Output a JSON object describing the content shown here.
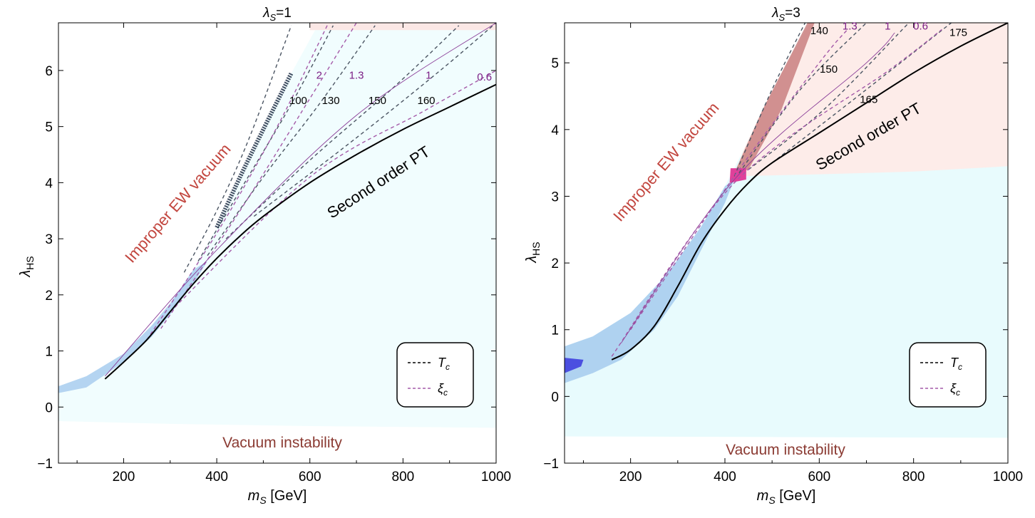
{
  "chart_data": [
    {
      "type": "line",
      "title": "λS=1",
      "title_main": "λ",
      "title_sub": "S",
      "title_rest": "=1",
      "xlabel_main": "m",
      "xlabel_sub": "S",
      "xlabel_rest": " [GeV]",
      "ylabel_main": "λ",
      "ylabel_sub": "HS",
      "xlim": [
        60,
        1000
      ],
      "ylim": [
        -1,
        6.85
      ],
      "xticks": [
        "200",
        "400",
        "600",
        "800",
        "1000"
      ],
      "xtick_values": [
        200,
        400,
        600,
        800,
        1000
      ],
      "yticks": [
        "−1",
        "0",
        "1",
        "2",
        "3",
        "4",
        "5",
        "6"
      ],
      "ytick_values": [
        -1,
        0,
        1,
        2,
        3,
        4,
        5,
        6
      ],
      "region_labels": {
        "improper": "Improper EW vacuum",
        "second_order": "Second order PT",
        "instability": "Vacuum instability"
      },
      "legend": {
        "tc": "T",
        "tc_sub": "c",
        "xi": "ξ",
        "xi_sub": "c",
        "placement": "bottom-right"
      },
      "second_order_boundary": [
        [
          160,
          0.5
        ],
        [
          200,
          0.8
        ],
        [
          250,
          1.2
        ],
        [
          300,
          1.7
        ],
        [
          350,
          2.2
        ],
        [
          400,
          2.65
        ],
        [
          450,
          3.05
        ],
        [
          500,
          3.4
        ],
        [
          600,
          4.0
        ],
        [
          700,
          4.5
        ],
        [
          800,
          4.95
        ],
        [
          900,
          5.35
        ],
        [
          1000,
          5.75
        ]
      ],
      "improper_boundary": [
        [
          60,
          0.37
        ],
        [
          120,
          0.55
        ],
        [
          200,
          0.95
        ],
        [
          260,
          1.45
        ],
        [
          300,
          1.85
        ],
        [
          350,
          2.45
        ],
        [
          400,
          3.2
        ],
        [
          450,
          4.1
        ],
        [
          500,
          4.95
        ],
        [
          560,
          5.95
        ],
        [
          620,
          6.85
        ]
      ],
      "blue_band_lower": [
        [
          60,
          0.25
        ],
        [
          120,
          0.35
        ],
        [
          200,
          0.8
        ],
        [
          260,
          1.25
        ],
        [
          300,
          1.65
        ],
        [
          350,
          2.2
        ],
        [
          380,
          2.6
        ]
      ],
      "instability_lower": [
        [
          60,
          -0.25
        ],
        [
          300,
          -0.3
        ],
        [
          600,
          -0.34
        ],
        [
          1000,
          -0.37
        ]
      ],
      "tc_labels": [
        {
          "text": "100",
          "x": 575,
          "y": 5.4
        },
        {
          "text": "130",
          "x": 645,
          "y": 5.4
        },
        {
          "text": "150",
          "x": 745,
          "y": 5.4
        },
        {
          "text": "160",
          "x": 850,
          "y": 5.4
        }
      ],
      "xi_labels": [
        {
          "text": "2",
          "x": 620,
          "y": 5.85
        },
        {
          "text": "1.3",
          "x": 700,
          "y": 5.85
        },
        {
          "text": "1",
          "x": 855,
          "y": 5.85
        },
        {
          "text": "0.6",
          "x": 975,
          "y": 5.82
        }
      ],
      "tc_contours": [
        [
          [
            330,
            2.4
          ],
          [
            400,
            3.5
          ],
          [
            470,
            4.8
          ],
          [
            560,
            6.8
          ]
        ],
        [
          [
            360,
            2.6
          ],
          [
            460,
            4.0
          ],
          [
            560,
            5.4
          ],
          [
            650,
            6.8
          ]
        ],
        [
          [
            380,
            2.7
          ],
          [
            500,
            4.1
          ],
          [
            620,
            5.4
          ],
          [
            740,
            6.8
          ]
        ],
        [
          [
            420,
            3.0
          ],
          [
            600,
            4.4
          ],
          [
            780,
            5.7
          ],
          [
            920,
            6.8
          ]
        ],
        [
          [
            480,
            3.4
          ],
          [
            700,
            4.8
          ],
          [
            880,
            6.0
          ],
          [
            1000,
            6.85
          ]
        ]
      ],
      "xi_contours": [
        [
          [
            250,
            1.2
          ],
          [
            400,
            3.1
          ],
          [
            530,
            5.0
          ],
          [
            640,
            6.85
          ]
        ],
        [
          [
            280,
            1.4
          ],
          [
            450,
            3.5
          ],
          [
            600,
            5.5
          ],
          [
            700,
            6.85
          ]
        ],
        [
          [
            160,
            0.55
          ],
          [
            400,
            2.8
          ],
          [
            700,
            5.2
          ],
          [
            1000,
            6.85
          ]
        ],
        [
          [
            300,
            1.7
          ],
          [
            600,
            4.1
          ],
          [
            850,
            5.3
          ],
          [
            1000,
            6.0
          ]
        ]
      ]
    },
    {
      "type": "line",
      "title": "λS=3",
      "title_main": "λ",
      "title_sub": "S",
      "title_rest": "=3",
      "xlabel_main": "m",
      "xlabel_sub": "S",
      "xlabel_rest": " [GeV]",
      "ylabel_main": "λ",
      "ylabel_sub": "HS",
      "xlim": [
        60,
        1000
      ],
      "ylim": [
        -1,
        5.6
      ],
      "xticks": [
        "200",
        "400",
        "600",
        "800",
        "1000"
      ],
      "xtick_values": [
        200,
        400,
        600,
        800,
        1000
      ],
      "yticks": [
        "−1",
        "0",
        "1",
        "2",
        "3",
        "4",
        "5"
      ],
      "ytick_values": [
        -1,
        0,
        1,
        2,
        3,
        4,
        5
      ],
      "region_labels": {
        "improper": "Improper EW vacuum",
        "second_order": "Second order PT",
        "instability": "Vacuum instability"
      },
      "legend": {
        "tc": "T",
        "tc_sub": "c",
        "xi": "ξ",
        "xi_sub": "c",
        "placement": "bottom-right"
      },
      "second_order_boundary": [
        [
          160,
          0.55
        ],
        [
          200,
          0.7
        ],
        [
          250,
          1.05
        ],
        [
          300,
          1.65
        ],
        [
          350,
          2.3
        ],
        [
          400,
          2.8
        ],
        [
          450,
          3.2
        ],
        [
          500,
          3.5
        ],
        [
          600,
          3.95
        ],
        [
          700,
          4.4
        ],
        [
          800,
          4.85
        ],
        [
          900,
          5.25
        ],
        [
          1000,
          5.6
        ]
      ],
      "improper_boundary": [
        [
          60,
          0.75
        ],
        [
          120,
          0.9
        ],
        [
          200,
          1.25
        ],
        [
          260,
          1.7
        ],
        [
          300,
          2.05
        ],
        [
          350,
          2.55
        ],
        [
          400,
          3.15
        ],
        [
          440,
          3.7
        ],
        [
          480,
          4.3
        ],
        [
          520,
          4.85
        ],
        [
          580,
          5.6
        ]
      ],
      "blue_band_lower": [
        [
          60,
          0.2
        ],
        [
          120,
          0.35
        ],
        [
          180,
          0.55
        ],
        [
          250,
          1.0
        ],
        [
          300,
          1.5
        ],
        [
          350,
          2.2
        ],
        [
          400,
          2.9
        ],
        [
          420,
          3.25
        ]
      ],
      "instability_lower": [
        [
          60,
          -0.6
        ],
        [
          1000,
          -0.62
        ]
      ],
      "pink_lower": [
        [
          420,
          3.3
        ],
        [
          600,
          3.33
        ],
        [
          800,
          3.37
        ],
        [
          1000,
          3.45
        ]
      ],
      "tc_labels": [
        {
          "text": "140",
          "x": 600,
          "y": 5.43
        },
        {
          "text": "150",
          "x": 620,
          "y": 4.85
        },
        {
          "text": "165",
          "x": 705,
          "y": 4.4
        },
        {
          "text": "175",
          "x": 895,
          "y": 5.4
        }
      ],
      "xi_labels": [
        {
          "text": "1.3",
          "x": 665,
          "y": 5.5
        },
        {
          "text": "1",
          "x": 745,
          "y": 5.5
        },
        {
          "text": "0.6",
          "x": 815,
          "y": 5.5
        }
      ],
      "tc_contours": [
        [
          [
            420,
            3.3
          ],
          [
            500,
            4.6
          ],
          [
            570,
            5.6
          ]
        ],
        [
          [
            430,
            3.35
          ],
          [
            560,
            4.6
          ],
          [
            700,
            5.6
          ]
        ],
        [
          [
            450,
            3.4
          ],
          [
            610,
            4.3
          ],
          [
            790,
            5.6
          ]
        ],
        [
          [
            500,
            3.5
          ],
          [
            700,
            4.6
          ],
          [
            880,
            5.6
          ]
        ]
      ],
      "xi_contours": [
        [
          [
            200,
            1.0
          ],
          [
            420,
            3.3
          ],
          [
            600,
            5.0
          ],
          [
            660,
            5.5
          ]
        ],
        [
          [
            180,
            0.8
          ],
          [
            420,
            3.25
          ],
          [
            700,
            5.0
          ],
          [
            760,
            5.45
          ]
        ],
        [
          [
            160,
            0.6
          ],
          [
            420,
            3.2
          ],
          [
            750,
            4.9
          ],
          [
            860,
            5.5
          ]
        ]
      ]
    }
  ]
}
